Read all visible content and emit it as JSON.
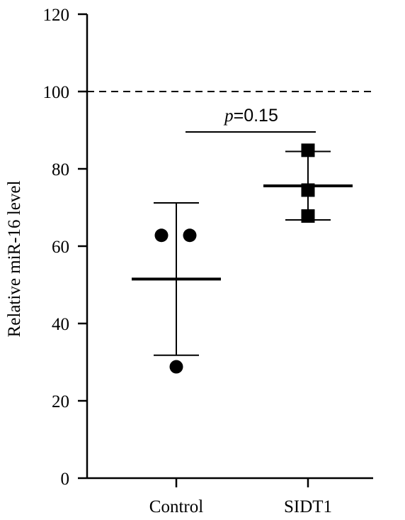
{
  "chart_data": {
    "type": "scatter",
    "ylabel": "Relative miR-16 level",
    "xlabel": "",
    "categories": [
      "Control",
      "SIDT1"
    ],
    "ylim": [
      0,
      120
    ],
    "yticks": [
      0,
      20,
      40,
      60,
      80,
      100,
      120
    ],
    "reference_line": {
      "y": 100,
      "style": "dashed"
    },
    "series": [
      {
        "category": "Control",
        "marker": "circle",
        "points": [
          62.8,
          62.8,
          28.8
        ],
        "mean": 51.5,
        "sd_upper": 71.2,
        "sd_lower": 31.8
      },
      {
        "category": "SIDT1",
        "marker": "square",
        "points": [
          84.8,
          74.5,
          67.8
        ],
        "mean": 75.6,
        "sd_upper": 84.5,
        "sd_lower": 66.8
      }
    ],
    "annotation": {
      "symbol": "p",
      "text": "=0.15"
    }
  }
}
